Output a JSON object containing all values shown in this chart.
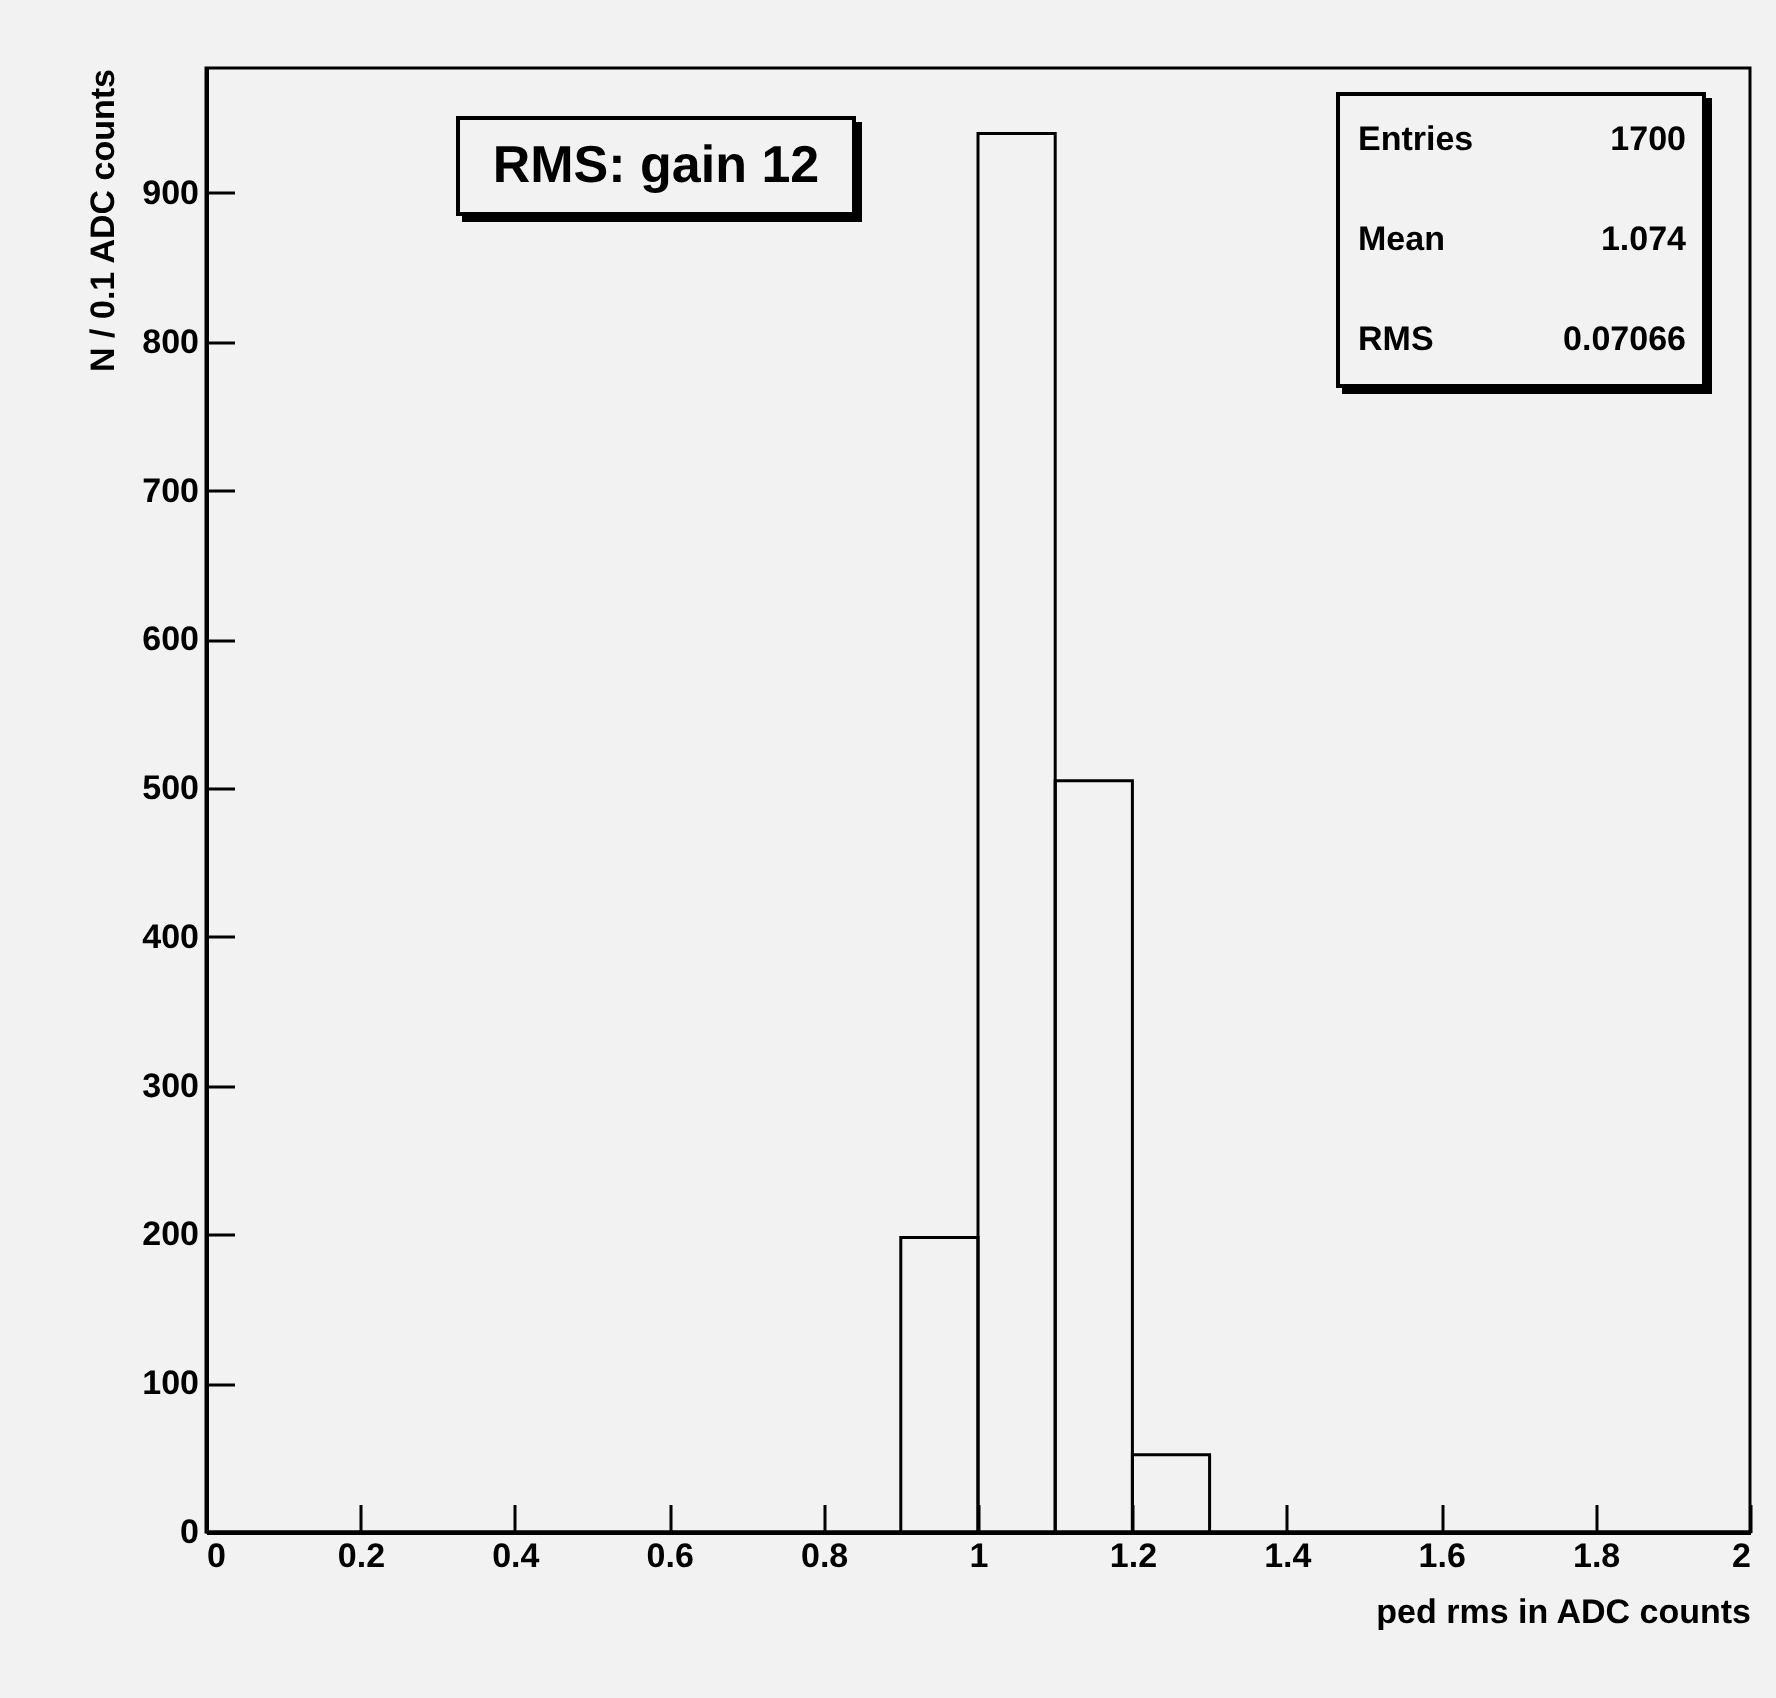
{
  "chart_data": {
    "type": "histogram",
    "title": "RMS: gain 12",
    "xlabel": "ped rms in ADC counts",
    "ylabel": "N / 0.1 ADC counts",
    "bins": [
      0,
      0.1,
      0.2,
      0.3,
      0.4,
      0.5,
      0.6,
      0.7,
      0.8,
      0.9,
      1.0,
      1.1,
      1.2,
      1.3,
      1.4,
      1.5,
      1.6,
      1.7,
      1.8,
      1.9,
      2.0
    ],
    "values": [
      0,
      0,
      0,
      0,
      0,
      0,
      0,
      0,
      0,
      198,
      940,
      505,
      52,
      0,
      0,
      0,
      0,
      0,
      0,
      0
    ],
    "color": "#000000",
    "xlim": [
      0,
      2
    ],
    "xticks": [
      0,
      0.2,
      0.4,
      0.6,
      0.8,
      1,
      1.2,
      1.4,
      1.6,
      1.8,
      2
    ],
    "ylim": [
      0,
      984
    ],
    "yticks": [
      0,
      100,
      200,
      300,
      400,
      500,
      600,
      700,
      800,
      900
    ],
    "annotations": [
      "Entries 1700",
      "Mean 1.074",
      "RMS 0.07066"
    ]
  }
}
